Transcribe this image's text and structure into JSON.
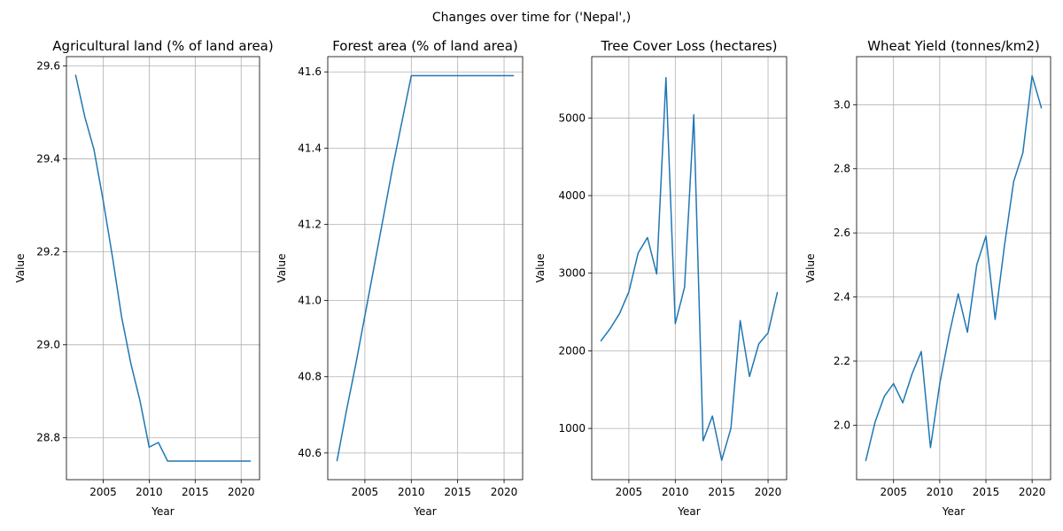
{
  "suptitle": "Changes over time for ('Nepal',)",
  "chart_data": [
    {
      "type": "line",
      "title": "Agricultural land (% of land area)",
      "xlabel": "Year",
      "ylabel": "Value",
      "xlim": [
        2001,
        2022
      ],
      "ylim": [
        28.71,
        29.62
      ],
      "xticks": [
        2005,
        2010,
        2015,
        2020
      ],
      "yticks": [
        28.8,
        29.0,
        29.2,
        29.4,
        29.6
      ],
      "ytick_decimals": 1,
      "grid": true,
      "x": [
        2002,
        2003,
        2004,
        2005,
        2006,
        2007,
        2008,
        2009,
        2010,
        2011,
        2012,
        2013,
        2014,
        2015,
        2016,
        2017,
        2018,
        2019,
        2020,
        2021
      ],
      "y": [
        29.58,
        29.49,
        29.42,
        29.31,
        29.19,
        29.06,
        28.96,
        28.88,
        28.78,
        28.79,
        28.75,
        28.75,
        28.75,
        28.75,
        28.75,
        28.75,
        28.75,
        28.75,
        28.75,
        28.75
      ]
    },
    {
      "type": "line",
      "title": "Forest area (% of land area)",
      "xlabel": "Year",
      "ylabel": "Value",
      "xlim": [
        2001,
        2022
      ],
      "ylim": [
        40.53,
        41.64
      ],
      "xticks": [
        2005,
        2010,
        2015,
        2020
      ],
      "yticks": [
        40.6,
        40.8,
        41.0,
        41.2,
        41.4,
        41.6
      ],
      "ytick_decimals": 1,
      "grid": true,
      "x": [
        2002,
        2003,
        2004,
        2005,
        2006,
        2007,
        2008,
        2009,
        2010,
        2011,
        2012,
        2013,
        2014,
        2015,
        2016,
        2017,
        2018,
        2019,
        2020,
        2021
      ],
      "y": [
        40.58,
        40.71,
        40.83,
        40.96,
        41.09,
        41.22,
        41.35,
        41.47,
        41.59,
        41.59,
        41.59,
        41.59,
        41.59,
        41.59,
        41.59,
        41.59,
        41.59,
        41.59,
        41.59,
        41.59
      ]
    },
    {
      "type": "line",
      "title": "Tree Cover Loss (hectares)",
      "xlabel": "Year",
      "ylabel": "Value",
      "xlim": [
        2001,
        2022
      ],
      "ylim": [
        340,
        5790
      ],
      "xticks": [
        2005,
        2010,
        2015,
        2020
      ],
      "yticks": [
        1000,
        2000,
        3000,
        4000,
        5000
      ],
      "ytick_decimals": 0,
      "grid": true,
      "x": [
        2002,
        2003,
        2004,
        2005,
        2006,
        2007,
        2008,
        2009,
        2010,
        2011,
        2012,
        2013,
        2014,
        2015,
        2016,
        2017,
        2018,
        2019,
        2020,
        2021
      ],
      "y": [
        2130,
        2290,
        2480,
        2760,
        3260,
        3460,
        2990,
        5520,
        2350,
        2820,
        5040,
        840,
        1160,
        590,
        1000,
        2390,
        1670,
        2090,
        2230,
        2750
      ]
    },
    {
      "type": "line",
      "title": "Wheat Yield (tonnes/km2)",
      "xlabel": "Year",
      "ylabel": "Value",
      "xlim": [
        2001,
        2022
      ],
      "ylim": [
        1.83,
        3.15
      ],
      "xticks": [
        2005,
        2010,
        2015,
        2020
      ],
      "yticks": [
        2.0,
        2.2,
        2.4,
        2.6,
        2.8,
        3.0
      ],
      "ytick_decimals": 1,
      "grid": true,
      "x": [
        2002,
        2003,
        2004,
        2005,
        2006,
        2007,
        2008,
        2009,
        2010,
        2011,
        2012,
        2013,
        2014,
        2015,
        2016,
        2017,
        2018,
        2019,
        2020,
        2021
      ],
      "y": [
        1.89,
        2.01,
        2.09,
        2.13,
        2.07,
        2.16,
        2.23,
        1.93,
        2.13,
        2.28,
        2.41,
        2.29,
        2.5,
        2.59,
        2.33,
        2.56,
        2.76,
        2.85,
        3.09,
        2.99
      ]
    }
  ]
}
